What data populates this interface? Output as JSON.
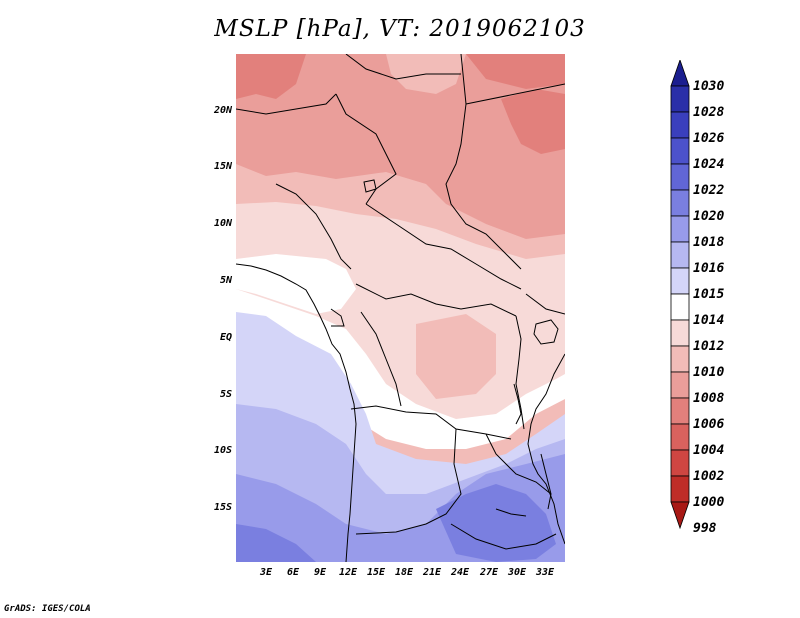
{
  "title": "MSLP [hPa], VT: 2019062103",
  "credit": "GrADS: IGES/COLA",
  "lat_labels": [
    "20N",
    "15N",
    "10N",
    "5N",
    "EQ",
    "5S",
    "10S",
    "15S"
  ],
  "lon_labels": [
    "3E",
    "6E",
    "9E",
    "12E",
    "15E",
    "18E",
    "21E",
    "24E",
    "27E",
    "30E",
    "33E"
  ],
  "colorbar": {
    "labels": [
      "1030",
      "1028",
      "1026",
      "1024",
      "1022",
      "1020",
      "1018",
      "1016",
      "1015",
      "1014",
      "1012",
      "1010",
      "1008",
      "1006",
      "1004",
      "1002",
      "1000",
      "998"
    ],
    "colors": [
      "#1b1e8f",
      "#2a2fa8",
      "#3a3fbd",
      "#4c52cb",
      "#6166d6",
      "#7a7fe0",
      "#989bea",
      "#b6b8f1",
      "#d4d5f8",
      "#ffffff",
      "#f7dad8",
      "#f2bcb8",
      "#ea9e9a",
      "#e2807c",
      "#d9625e",
      "#cf4642",
      "#bf2d28",
      "#a81915"
    ]
  },
  "field_colors": {
    "p1018": "#7a7fe0",
    "p1016": "#989bea",
    "p1015": "#b6b8f1",
    "p1014": "#d4d5f8",
    "p1013": "#ffffff",
    "p1012": "#f7dad8",
    "p1010": "#f2bcb8",
    "p1008": "#ea9e9a",
    "p1006": "#e2807c"
  }
}
